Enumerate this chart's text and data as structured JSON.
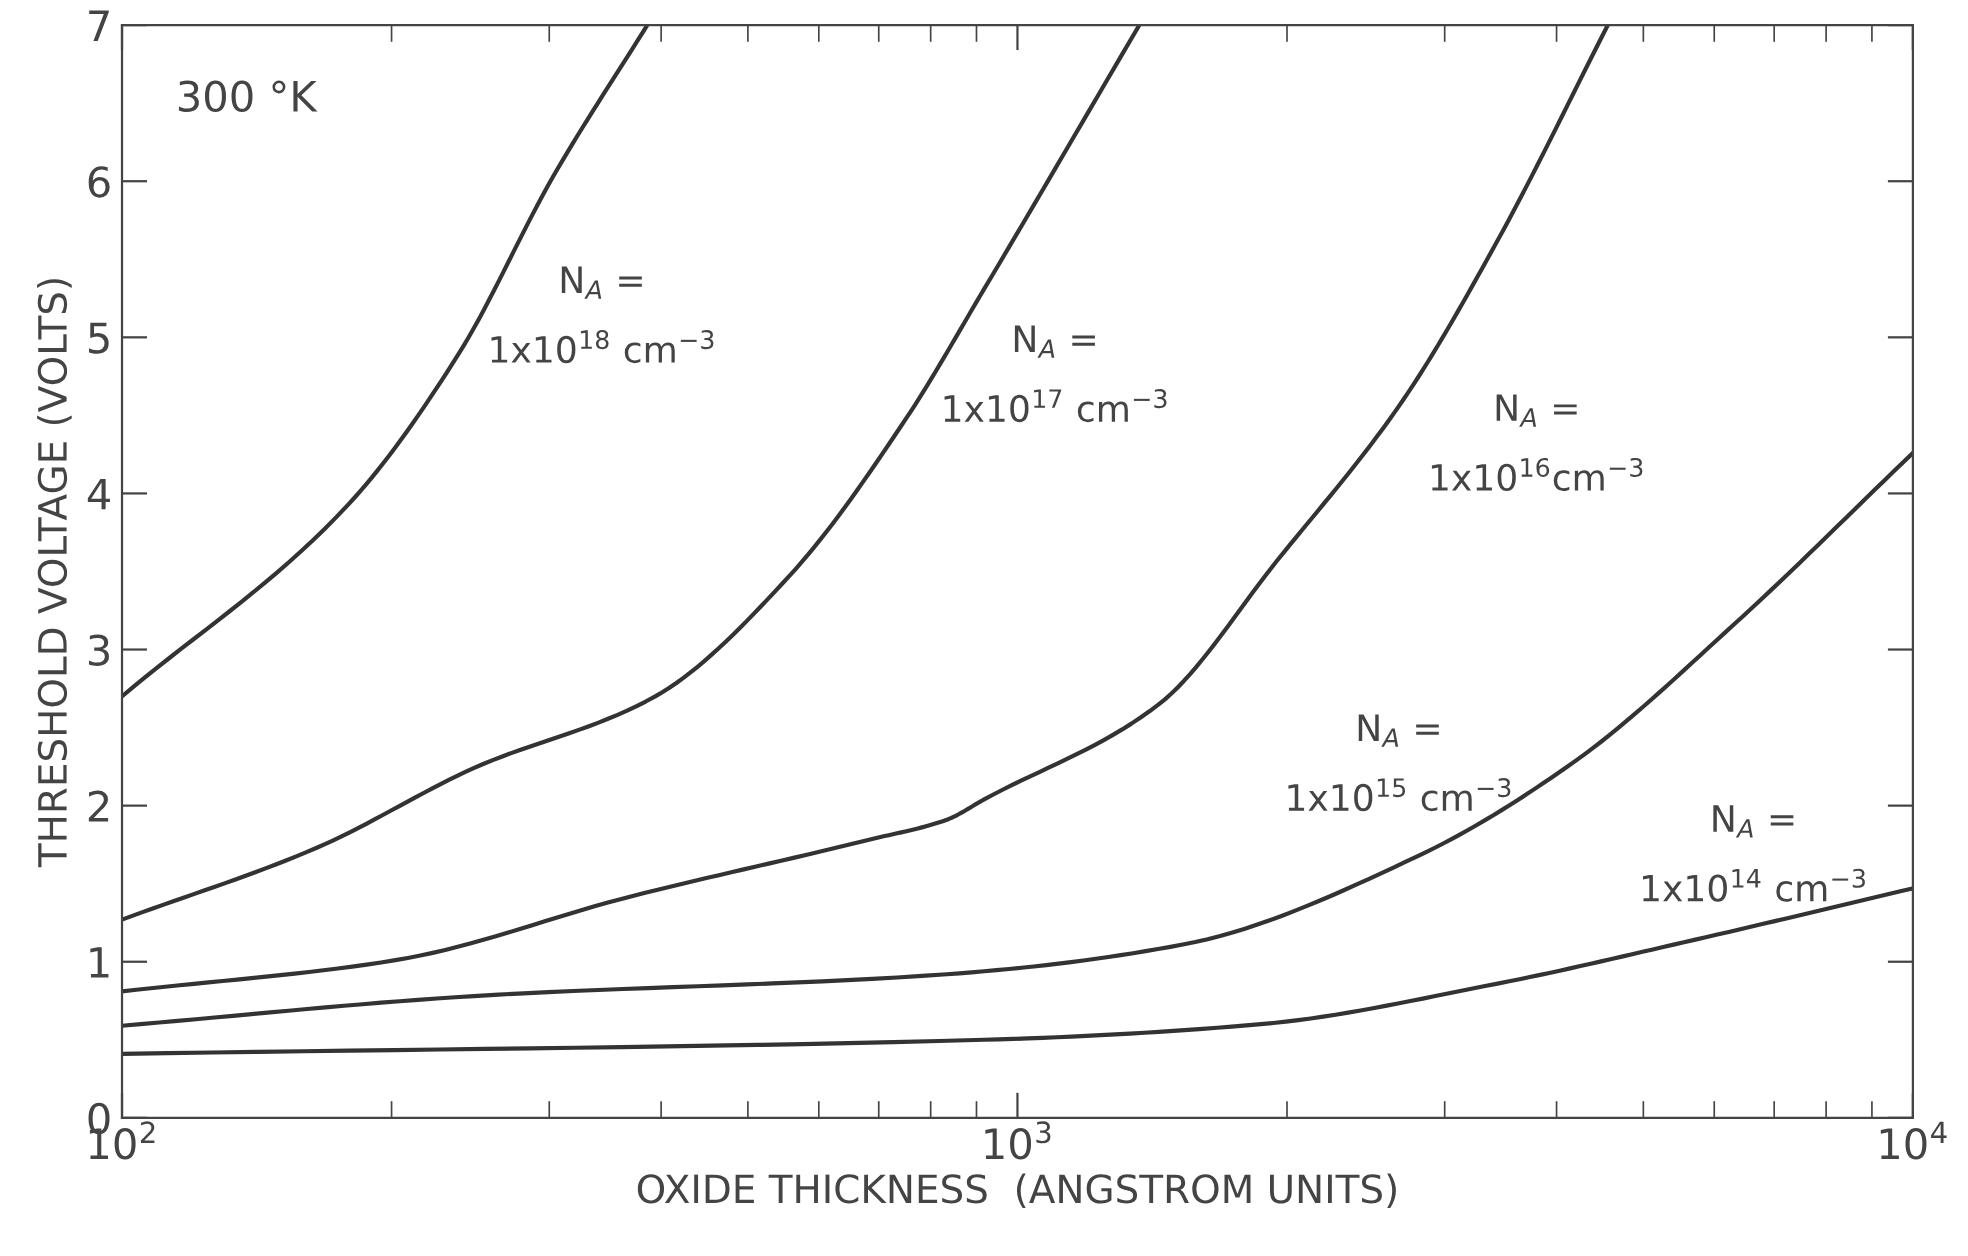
{
  "chart_data": {
    "type": "line",
    "xlabel": "OXIDE THICKNESS  (ANGSTROM UNITS)",
    "ylabel": "THRESHOLD VOLTAGE (VOLTS)",
    "log": "x",
    "xlim": [
      100,
      10000
    ],
    "ylim": [
      0,
      7
    ],
    "xticks": [
      {
        "value": 100,
        "label": "10$^{2}$"
      },
      {
        "value": 1000,
        "label": "10$^{3}$"
      },
      {
        "value": 10000,
        "label": "10$^{4}$"
      }
    ],
    "yticks": [
      0,
      1,
      2,
      3,
      4,
      5,
      6,
      7
    ],
    "grid": false,
    "legend": false,
    "marker": "none",
    "line_style": "solid",
    "series": [
      {
        "color": "#333333",
        "x": [
          100,
          179,
          238,
          303,
          386
        ],
        "values": [
          2.7,
          3.93,
          4.9,
          6.03,
          7
        ]
      },
      {
        "color": "#333333",
        "x": [
          100,
          165,
          247,
          394,
          556,
          753,
          918,
          1368
        ],
        "values": [
          1.27,
          1.73,
          2.24,
          2.7,
          3.47,
          4.49,
          5.31,
          7
        ]
      },
      {
        "color": "#333333",
        "x": [
          100,
          202,
          371,
          681,
          834,
          918,
          1439,
          1950,
          2697,
          3437,
          4563
        ],
        "values": [
          0.81,
          1.01,
          1.42,
          1.78,
          1.91,
          2.04,
          2.65,
          3.57,
          4.6,
          5.62,
          7
        ]
      },
      {
        "color": "#333333",
        "x": [
          100,
          247,
          834,
          1530,
          2807,
          4207,
          6310,
          10000
        ],
        "values": [
          0.59,
          0.78,
          0.92,
          1.11,
          1.68,
          2.29,
          3.16,
          4.26
        ]
      },
      {
        "color": "#333333",
        "x": [
          100,
          918,
          1870,
          3437,
          5700,
          10000
        ],
        "values": [
          0.41,
          0.5,
          0.6,
          0.86,
          1.14,
          1.47
        ]
      }
    ],
    "annotations": [
      "300 °K",
      "N$_{A}$ =",
      "1x10$^{18}$ cm$^{−3}$",
      "N$_{A}$ =",
      "1x10$^{17}$ cm$^{−3}$",
      "N$_{A}$ =",
      "1x10$^{16}$cm$^{−3}$",
      "N$_{A}$ =",
      "1x10$^{15}$ cm$^{−3}$",
      "N$_{A}$ =",
      "1x10$^{14}$ cm$^{−3}$"
    ]
  }
}
